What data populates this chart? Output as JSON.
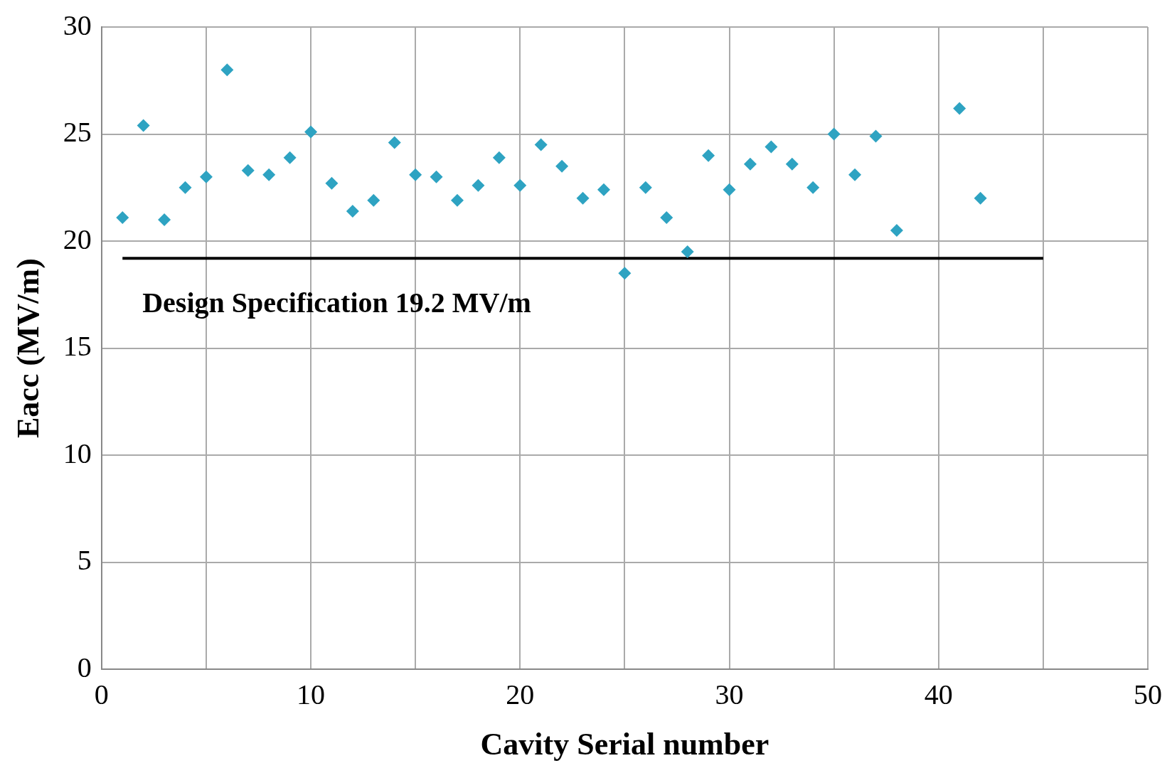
{
  "chart_data": {
    "type": "scatter",
    "xlabel": "Cavity Serial number",
    "ylabel": "Eacc (MV/m)",
    "x": [
      1,
      2,
      3,
      4,
      5,
      6,
      7,
      8,
      9,
      10,
      11,
      12,
      13,
      14,
      15,
      16,
      17,
      18,
      19,
      20,
      21,
      22,
      23,
      24,
      25,
      26,
      27,
      28,
      29,
      30,
      31,
      32,
      33,
      34,
      35,
      36,
      37,
      38,
      41,
      42
    ],
    "series": [
      {
        "marker": "diamond",
        "color": "#2ea3c2",
        "values": [
          21.1,
          25.4,
          21.0,
          22.5,
          23.0,
          28.0,
          23.3,
          23.1,
          23.9,
          25.1,
          22.7,
          21.4,
          21.9,
          24.6,
          23.1,
          23.0,
          21.9,
          22.6,
          23.9,
          22.6,
          24.5,
          23.5,
          22.0,
          22.4,
          18.5,
          22.5,
          21.1,
          19.5,
          24.0,
          22.4,
          23.6,
          24.4,
          23.6,
          22.5,
          25.0,
          23.1,
          24.9,
          20.5,
          26.2,
          22.0
        ]
      },
      {
        "type": "line",
        "marker": "none",
        "color": "#000000",
        "x": [
          1,
          45
        ],
        "values": [
          19.2,
          19.2
        ]
      }
    ],
    "annotations": [
      "Design Specification 19.2 MV/m"
    ],
    "xlim": [
      0,
      50
    ],
    "ylim": [
      0,
      30
    ],
    "xticks": [
      0,
      {
        "value": 5,
        "label": null
      },
      10,
      {
        "value": 15,
        "label": null
      },
      20,
      {
        "value": 25,
        "label": null
      },
      30,
      {
        "value": 35,
        "label": null
      },
      40,
      {
        "value": 45,
        "label": null
      },
      50
    ],
    "yticks": [
      0,
      5,
      10,
      15,
      20,
      25,
      30
    ],
    "grid": true,
    "legend": false,
    "line_style": "solid"
  }
}
